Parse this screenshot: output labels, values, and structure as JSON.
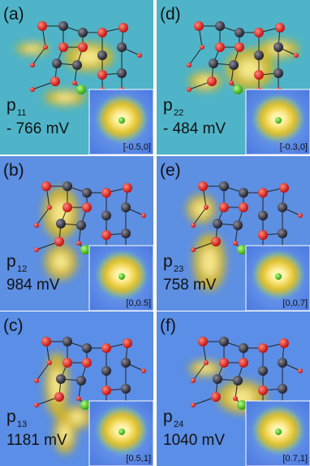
{
  "panels": [
    {
      "label": "(a)",
      "orbital": "p",
      "orbital_index": "11",
      "energy": "- 766 mV",
      "k_point": "[-0.5,0]"
    },
    {
      "label": "(b)",
      "orbital": "p",
      "orbital_index": "12",
      "energy": "984 mV",
      "k_point": "[0,0.5]"
    },
    {
      "label": "(c)",
      "orbital": "p",
      "orbital_index": "13",
      "energy": "1181 mV",
      "k_point": "[0.5,1]"
    },
    {
      "label": "(d)",
      "orbital": "p",
      "orbital_index": "22",
      "energy": "- 484 mV",
      "k_point": "[-0.3,0]"
    },
    {
      "label": "(e)",
      "orbital": "p",
      "orbital_index": "23",
      "energy": "758 mV",
      "k_point": "[0,0.7]"
    },
    {
      "label": "(f)",
      "orbital": "p",
      "orbital_index": "24",
      "energy": "1040 mV",
      "k_point": "[0.7,1]"
    }
  ]
}
